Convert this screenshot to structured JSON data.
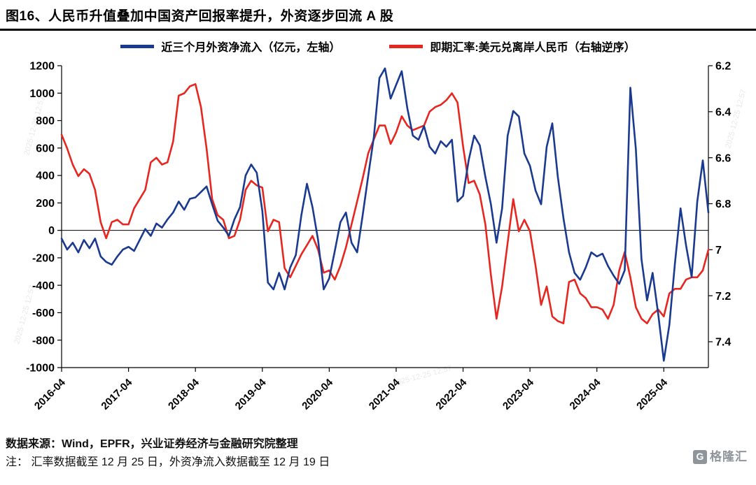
{
  "header": {
    "title": "图16、人民币升值叠加中国资产回报率提升，外资逐步回流 A 股"
  },
  "watermark": {
    "text": "2025-12-25 12:57"
  },
  "footer": {
    "source": "数据来源：Wind，EPFR，兴业证券经济与金融研究院整理",
    "note": "注：  汇率数据截至 12 月 25 日，外资净流入数据截至 12 月 19 日",
    "logo_letter": "G",
    "logo_text": "格隆汇"
  },
  "chart_data": {
    "type": "line",
    "title": "",
    "x_monthly_from": "2016-04",
    "x_tick_labels": [
      "2016-04",
      "2017-04",
      "2018-04",
      "2019-04",
      "2020-04",
      "2021-04",
      "2022-04",
      "2023-04",
      "2024-04",
      "2025-04"
    ],
    "x_tick_every": 12,
    "left_axis": {
      "label": "亿元",
      "min": -1000,
      "max": 1200,
      "ticks": [
        1200,
        1000,
        800,
        600,
        400,
        200,
        0,
        -200,
        -400,
        -600,
        -800,
        -1000
      ]
    },
    "right_axis": {
      "label": "美元兑离岸人民币（逆序）",
      "min": 6.2,
      "max": 7.4,
      "inverted": true,
      "ticks": [
        "6.2",
        "6.4",
        "6.6",
        "6.8",
        "7",
        "7.2",
        "7.4"
      ]
    },
    "series": [
      {
        "name": "近三个月外资净流入（亿元，左轴）",
        "axis": "left",
        "color": "#1a3a8f",
        "values": [
          -60,
          -140,
          -90,
          -160,
          -70,
          -130,
          -60,
          -190,
          -230,
          -250,
          -190,
          -140,
          -120,
          -150,
          -70,
          10,
          -40,
          50,
          20,
          80,
          130,
          210,
          150,
          230,
          240,
          280,
          320,
          190,
          70,
          20,
          -40,
          80,
          170,
          400,
          480,
          420,
          140,
          -380,
          -430,
          -310,
          -430,
          -270,
          -180,
          110,
          340,
          170,
          -70,
          -430,
          -350,
          -150,
          60,
          130,
          -90,
          -160,
          110,
          400,
          680,
          1110,
          1180,
          960,
          1060,
          1160,
          890,
          690,
          660,
          760,
          610,
          560,
          650,
          610,
          660,
          210,
          250,
          510,
          690,
          620,
          390,
          190,
          -90,
          160,
          690,
          870,
          830,
          560,
          470,
          290,
          190,
          610,
          780,
          390,
          90,
          -160,
          -310,
          -360,
          -270,
          -160,
          -190,
          -170,
          -260,
          -330,
          -390,
          -290,
          1040,
          590,
          -210,
          -510,
          -310,
          -610,
          -950,
          -690,
          -240,
          160,
          -110,
          -340,
          210,
          510,
          130
        ]
      },
      {
        "name": "即期汇率:美元兑离岸人民币（右轴逆序）",
        "axis": "right_inverted",
        "color": "#e82620",
        "values": [
          6.5,
          6.56,
          6.63,
          6.68,
          6.65,
          6.67,
          6.74,
          6.88,
          6.95,
          6.88,
          6.87,
          6.89,
          6.89,
          6.82,
          6.78,
          6.74,
          6.62,
          6.6,
          6.63,
          6.62,
          6.53,
          6.33,
          6.32,
          6.29,
          6.28,
          6.38,
          6.56,
          6.78,
          6.85,
          6.87,
          6.95,
          6.94,
          6.87,
          6.74,
          6.7,
          6.72,
          6.73,
          6.92,
          6.87,
          6.88,
          7.08,
          7.12,
          7.07,
          7.02,
          6.98,
          6.94,
          7.0,
          7.1,
          7.09,
          7.13,
          7.07,
          6.99,
          6.89,
          6.79,
          6.69,
          6.58,
          6.52,
          6.46,
          6.46,
          6.54,
          6.49,
          6.42,
          6.46,
          6.48,
          6.47,
          6.46,
          6.4,
          6.38,
          6.37,
          6.35,
          6.32,
          6.36,
          6.55,
          6.71,
          6.7,
          6.76,
          6.89,
          7.11,
          7.3,
          7.16,
          6.97,
          6.78,
          6.92,
          6.87,
          6.92,
          7.07,
          7.24,
          7.16,
          7.29,
          7.31,
          7.32,
          7.14,
          7.13,
          7.19,
          7.21,
          7.25,
          7.25,
          7.26,
          7.3,
          7.24,
          7.09,
          7.01,
          7.12,
          7.25,
          7.3,
          7.32,
          7.28,
          7.26,
          7.29,
          7.19,
          7.17,
          7.17,
          7.13,
          7.12,
          7.12,
          7.09,
          7.0
        ]
      }
    ]
  }
}
